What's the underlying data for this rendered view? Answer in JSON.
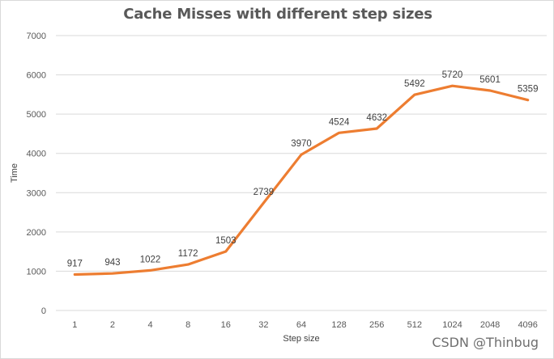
{
  "chart_data": {
    "type": "line",
    "title": "Cache Misses with different step sizes",
    "xlabel": "Step size",
    "ylabel": "Time",
    "categories": [
      "1",
      "2",
      "4",
      "8",
      "16",
      "32",
      "64",
      "128",
      "256",
      "512",
      "1024",
      "2048",
      "4096"
    ],
    "series": [
      {
        "values": [
          917,
          943,
          1022,
          1172,
          1503,
          2739,
          3970,
          4524,
          4632,
          5492,
          5720,
          5601,
          5359
        ],
        "color": "#ED7D31"
      }
    ],
    "ylim": [
      0,
      7000
    ],
    "yticks": [
      0,
      1000,
      2000,
      3000,
      4000,
      5000,
      6000,
      7000
    ],
    "grid": true,
    "data_labels": true,
    "legend": "none"
  },
  "watermark": "CSDN @Thinbug",
  "colors": {
    "line": "#ED7D31",
    "grid": "#d9d9d9",
    "text": "#595959"
  }
}
